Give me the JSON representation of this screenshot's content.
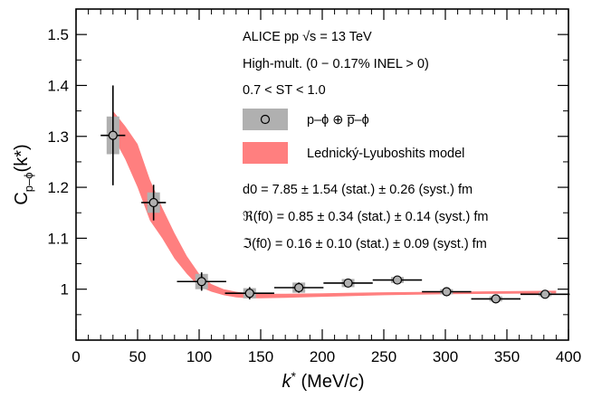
{
  "chart_data": {
    "type": "scatter",
    "xlabel": {
      "main": "k",
      "sup": "*",
      "rest": " (MeV/",
      "it": "c",
      "end": ")"
    },
    "ylabel": {
      "main": "C",
      "sub": "p–ϕ",
      "rest": "(k*)"
    },
    "xlim": [
      0,
      400
    ],
    "ylim": [
      0.9,
      1.55
    ],
    "xticks": [
      "0",
      "50",
      "100",
      "150",
      "200",
      "250",
      "300",
      "350",
      "400"
    ],
    "yticks": [
      "1",
      "1.1",
      "1.2",
      "1.3",
      "1.4",
      "1.5"
    ],
    "annotations": [
      "ALICE pp  √s = 13 TeV",
      "High-mult. (0 − 0.17% INEL > 0)",
      "0.7 < ST < 1.0"
    ],
    "legend": [
      {
        "label": "p–ϕ ⊕ p̅–ϕ",
        "kind": "data",
        "color": "#b0b0b0"
      },
      {
        "label": "Lednický-Lyuboshits model",
        "kind": "band",
        "color": "#ff7f7f"
      }
    ],
    "results": [
      "d0 = 7.85 ± 1.54 (stat.) ± 0.26 (syst.) fm",
      "ℜ(f0) = 0.85 ± 0.34 (stat.) ± 0.14 (syst.) fm",
      "ℑ(f0) = 0.16 ± 0.10 (stat.) ± 0.09 (syst.) fm"
    ],
    "series": [
      {
        "name": "p–ϕ ⊕ p̅–ϕ",
        "x": [
          30,
          63,
          102,
          141,
          181,
          221,
          261,
          301,
          341,
          381
        ],
        "y": [
          1.302,
          1.17,
          1.015,
          0.992,
          1.003,
          1.012,
          1.018,
          0.995,
          0.981,
          0.99
        ],
        "xerr": [
          10,
          10,
          20,
          20,
          20,
          20,
          20,
          20,
          20,
          20
        ],
        "stat_err": [
          0.098,
          0.035,
          0.018,
          0.012,
          0.01,
          0.008,
          0.008,
          0.005,
          0.005,
          0.003
        ],
        "syst_err": [
          0.037,
          0.02,
          0.015,
          0.01,
          0.01,
          0.008,
          0.006,
          0.005,
          0.005,
          0.004
        ],
        "color": "#555555"
      }
    ],
    "band": {
      "name": "Lednický-Lyuboshits model",
      "x": [
        30,
        40,
        50,
        60,
        70,
        80,
        90,
        100,
        110,
        120,
        130,
        140,
        150,
        170,
        200,
        250,
        300,
        350,
        390
      ],
      "lo": [
        1.3,
        1.255,
        1.2,
        1.135,
        1.1,
        1.06,
        1.03,
        1.005,
        0.995,
        0.988,
        0.984,
        0.982,
        0.982,
        0.983,
        0.985,
        0.988,
        0.99,
        0.991,
        0.992
      ],
      "hi": [
        1.35,
        1.32,
        1.285,
        1.215,
        1.16,
        1.11,
        1.065,
        1.03,
        1.01,
        1.0,
        0.995,
        0.992,
        0.991,
        0.991,
        0.992,
        0.994,
        0.995,
        0.996,
        0.997
      ],
      "color": "#ff7f7f"
    }
  }
}
